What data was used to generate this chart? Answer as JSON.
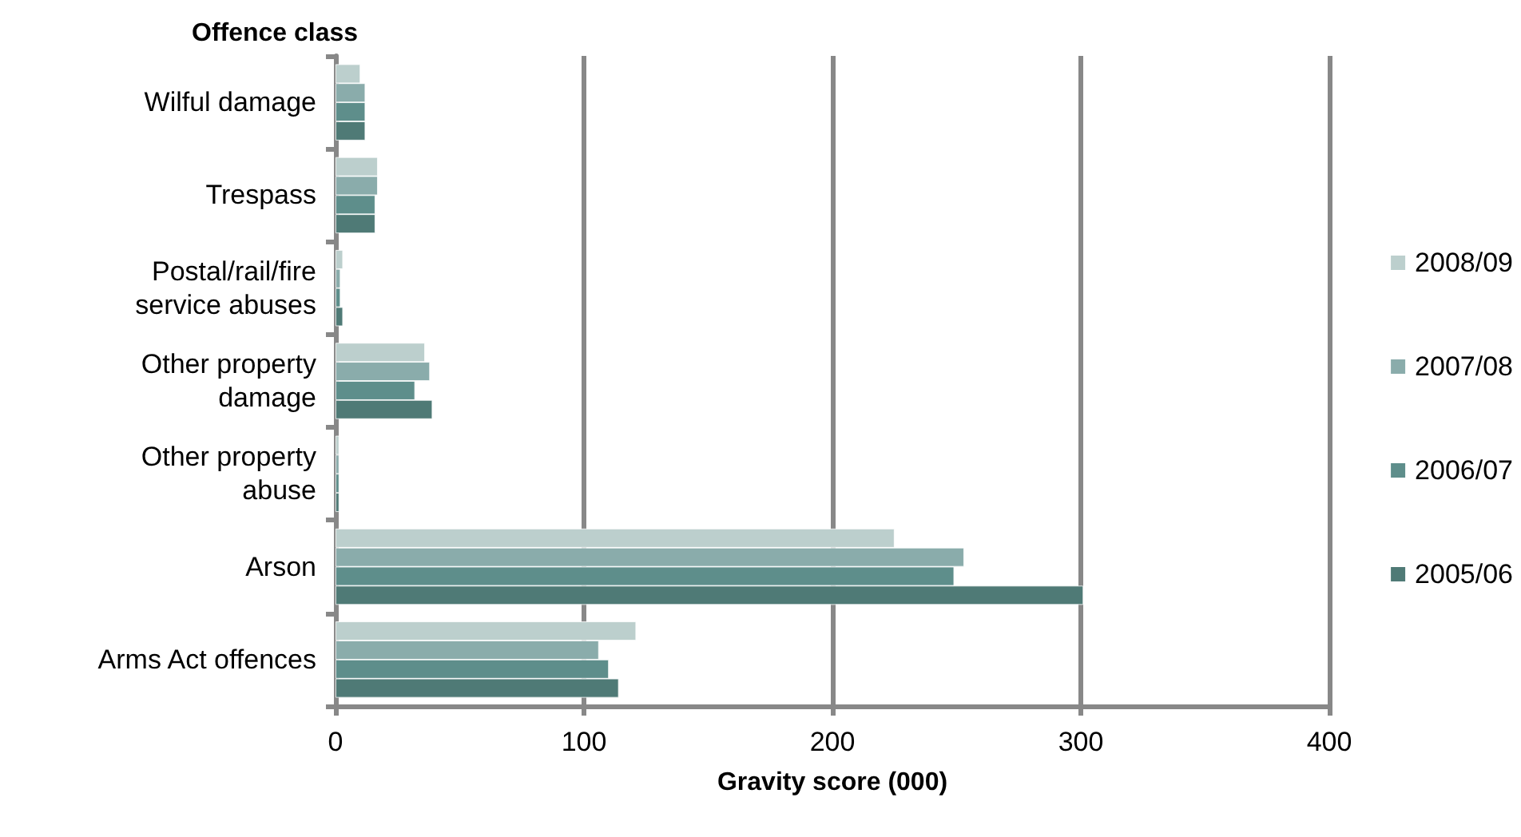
{
  "chart_data": {
    "type": "bar",
    "orientation": "horizontal",
    "ylabel": "Offence class",
    "xlabel": "Gravity score (000)",
    "categories": [
      "Wilful damage",
      "Trespass",
      "Postal/rail/fire service abuses",
      "Other property damage",
      "Other property abuse",
      "Arson",
      "Arms Act offences"
    ],
    "series": [
      {
        "name": "2008/09",
        "color": "#bccfcd",
        "values": [
          10,
          17,
          3,
          36,
          1.5,
          225,
          121
        ]
      },
      {
        "name": "2007/08",
        "color": "#8aacab",
        "values": [
          12,
          17,
          2,
          38,
          1.5,
          253,
          106
        ]
      },
      {
        "name": "2006/07",
        "color": "#5e8e8b",
        "values": [
          12,
          16,
          2,
          32,
          1.5,
          249,
          110
        ]
      },
      {
        "name": "2005/06",
        "color": "#4f7a76",
        "values": [
          12,
          16,
          3,
          39,
          1.5,
          301,
          114
        ]
      }
    ],
    "xlim": [
      0,
      400
    ],
    "xticks": [
      0,
      100,
      200,
      300,
      400
    ],
    "grid": "x",
    "legend": "right"
  }
}
